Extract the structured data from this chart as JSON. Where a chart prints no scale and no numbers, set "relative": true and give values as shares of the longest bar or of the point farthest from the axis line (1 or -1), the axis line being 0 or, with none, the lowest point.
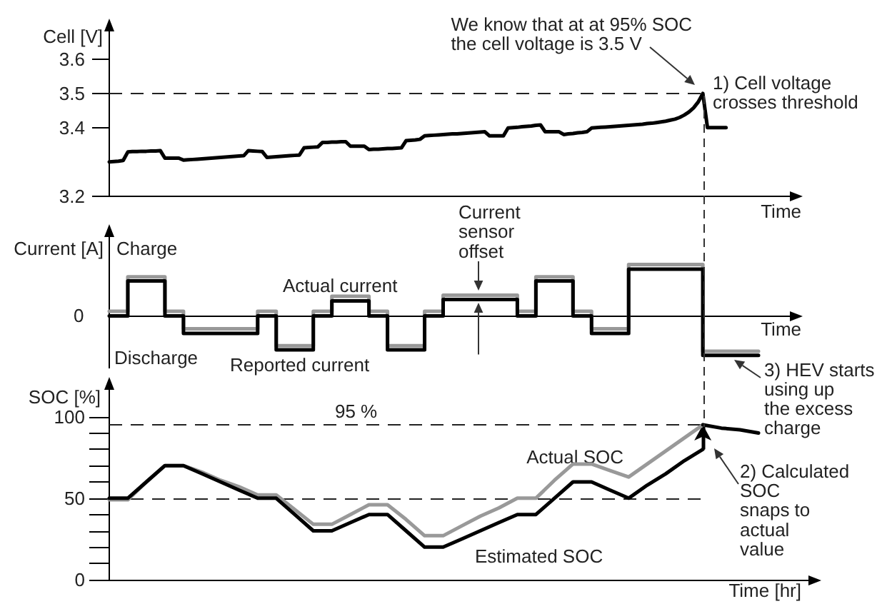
{
  "chart_data": [
    {
      "type": "line",
      "ylabel": "Cell [V]",
      "xlabel": "Time",
      "categories": [
        null,
        null,
        null,
        null,
        null,
        null,
        null,
        null,
        null,
        null,
        null,
        null,
        null,
        null,
        null,
        null,
        null,
        null,
        null,
        null,
        null,
        null,
        null,
        null,
        null,
        null,
        null,
        null,
        null,
        null,
        null,
        null,
        null,
        null,
        null,
        null,
        null,
        null,
        null,
        null,
        null,
        null,
        null,
        null,
        null,
        null,
        null,
        null,
        null,
        null,
        null,
        null,
        null,
        null,
        null,
        null,
        null,
        null,
        null,
        null,
        null,
        null,
        null,
        null,
        null,
        null,
        null,
        null,
        null,
        null,
        null,
        null,
        null,
        null,
        null,
        null,
        null,
        null,
        null,
        null,
        null,
        null,
        null,
        null,
        null,
        null,
        null,
        null,
        null,
        null,
        null,
        null,
        null,
        null,
        null,
        null,
        null,
        null,
        null,
        null,
        null,
        null,
        null,
        null,
        null,
        null,
        null,
        null,
        null,
        null,
        null,
        null,
        null,
        null,
        null,
        null,
        null,
        null,
        null,
        null,
        null,
        null,
        null,
        null,
        null,
        null,
        null,
        null,
        null,
        null,
        null,
        null,
        null,
        null,
        null,
        null,
        null,
        null,
        null,
        null,
        null,
        null,
        null,
        null,
        null,
        null,
        null,
        null,
        null
      ],
      "series": [
        {
          "color": "#000000",
          "values": [
            3.3,
            3.301,
            3.302,
            3.304,
            3.329,
            3.33,
            3.33,
            3.331,
            3.331,
            3.332,
            3.332,
            3.333,
            3.311,
            3.311,
            3.311,
            3.311,
            3.305,
            3.306,
            3.307,
            3.308,
            3.309,
            3.31,
            3.311,
            3.312,
            3.313,
            3.314,
            3.315,
            3.316,
            3.317,
            3.318,
            3.333,
            3.332,
            3.331,
            3.33,
            3.313,
            3.314,
            3.315,
            3.316,
            3.317,
            3.318,
            3.319,
            3.32,
            3.341,
            3.342,
            3.343,
            3.344,
            3.357,
            3.357,
            3.358,
            3.358,
            3.359,
            3.359,
            3.346,
            3.346,
            3.346,
            3.346,
            3.336,
            3.337,
            3.337,
            3.338,
            3.339,
            3.339,
            3.34,
            3.341,
            3.362,
            3.363,
            3.364,
            3.366,
            3.376,
            3.377,
            3.378,
            3.379,
            3.38,
            3.381,
            3.382,
            3.382,
            3.383,
            3.384,
            3.385,
            3.386,
            3.387,
            3.388,
            3.376,
            3.376,
            3.376,
            3.376,
            3.399,
            3.4,
            3.401,
            3.403,
            3.404,
            3.405,
            3.407,
            3.408,
            3.388,
            3.388,
            3.388,
            3.388,
            3.38,
            3.382,
            3.383,
            3.385,
            3.386,
            3.388,
            3.399,
            3.4,
            3.401,
            3.402,
            3.403,
            3.404,
            3.405,
            3.406,
            3.407,
            3.408,
            3.409,
            3.41,
            3.412,
            3.413,
            3.415,
            3.417,
            3.419,
            3.422,
            3.425,
            3.43,
            3.437,
            3.446,
            3.458,
            3.475,
            3.5,
            3.4,
            3.4,
            3.4,
            3.4,
            3.4,
            null,
            null,
            null,
            null,
            null,
            null,
            null,
            null,
            null,
            null,
            null,
            null,
            null,
            null,
            null
          ]
        }
      ],
      "ylim": [
        3.2,
        3.7
      ],
      "yticks": [
        3.2,
        3.4,
        3.5,
        3.6
      ],
      "ref_lines": [
        {
          "axis": "y",
          "value": 3.5,
          "line_style": "dashed"
        }
      ],
      "annotations": [
        "We know that at at 95% SOC\nthe cell voltage is 3.5 V",
        "1) Cell voltage\ncrosses threshold"
      ],
      "tick_labels": "y"
    },
    {
      "type": "step",
      "ylabel": "Current [A]",
      "xlabel": "Time",
      "relative": true,
      "categories": [
        null,
        null,
        null,
        null,
        null,
        null,
        null,
        null,
        null,
        null,
        null,
        null,
        null,
        null,
        null,
        null,
        null,
        null,
        null,
        null,
        null,
        null,
        null,
        null,
        null,
        null,
        null,
        null,
        null,
        null,
        null,
        null,
        null,
        null,
        null,
        null,
        null,
        null
      ],
      "series": [
        {
          "name": "Actual current",
          "color": "#999999",
          "values": [
            0.09,
            0.09,
            0.76,
            0.76,
            0.09,
            -0.25,
            -0.25,
            -0.25,
            -0.25,
            0.09,
            -0.58,
            -0.58,
            0.09,
            0.38,
            0.38,
            0.09,
            -0.58,
            -0.58,
            0.09,
            0.4,
            0.4,
            0.4,
            0.4,
            0.09,
            0.76,
            0.76,
            0.09,
            -0.25,
            -0.25,
            1,
            1,
            1,
            1,
            -0.69,
            -0.69,
            -0.69,
            null,
            null
          ]
        },
        {
          "name": "Reported current",
          "color": "#000000",
          "values": [
            0,
            0,
            0.68,
            0.68,
            0,
            -0.34,
            -0.34,
            -0.34,
            -0.34,
            0,
            -0.66,
            -0.66,
            0,
            0.29,
            0.29,
            0,
            -0.66,
            -0.66,
            0,
            0.32,
            0.32,
            0.32,
            0.32,
            0,
            0.68,
            0.68,
            0,
            -0.34,
            -0.34,
            0.91,
            0.91,
            0.91,
            0.91,
            -0.77,
            -0.77,
            -0.77,
            null,
            null
          ]
        }
      ],
      "annotations": [
        "Charge",
        "Discharge",
        "Current\nsensor\noffset",
        "3) HEV starts\nusing up\nthe excess\ncharge",
        "0"
      ],
      "tick_labels": "y"
    },
    {
      "type": "line",
      "ylabel": "SOC [%]",
      "xlabel": "Time [hr]",
      "categories": [
        null,
        null,
        null,
        null,
        null,
        null,
        null,
        null,
        null,
        null,
        null,
        null,
        null,
        null,
        null,
        null,
        null,
        null,
        null,
        null,
        null,
        null,
        null,
        null,
        null,
        null,
        null,
        null,
        null,
        null,
        null,
        null,
        null,
        null,
        null,
        null,
        null,
        null,
        null
      ],
      "series": [
        {
          "name": "Actual SOC",
          "color": "#999999",
          "values": [
            49,
            49,
            60,
            70,
            70,
            66,
            61,
            57,
            52,
            52,
            43,
            34,
            34,
            40,
            46,
            46,
            37,
            27,
            27,
            33,
            39,
            44,
            50,
            50,
            61,
            71,
            71,
            67,
            63,
            71,
            79,
            87,
            95,
            null,
            null,
            null,
            null,
            null,
            null
          ]
        },
        {
          "name": "Estimated SOC",
          "color": "#000000",
          "values": [
            50,
            50,
            60,
            70,
            70,
            65,
            60,
            55,
            50,
            50,
            40,
            30,
            30,
            35,
            40,
            40,
            30,
            20,
            20,
            25,
            30,
            35,
            40,
            40,
            50,
            60,
            60,
            55,
            50,
            58,
            65,
            73,
            80,
            null,
            null,
            null,
            null,
            null,
            null
          ]
        },
        {
          "color": "#000000",
          "values": [
            null,
            null,
            null,
            null,
            null,
            null,
            null,
            null,
            null,
            null,
            null,
            null,
            null,
            null,
            null,
            null,
            null,
            null,
            null,
            null,
            null,
            null,
            null,
            null,
            null,
            null,
            null,
            null,
            null,
            null,
            null,
            null,
            95,
            93,
            92,
            90,
            null,
            null,
            null
          ]
        }
      ],
      "ylim": [
        0,
        120
      ],
      "yticks": [
        0,
        {
          "value": 10,
          "label": null
        },
        {
          "value": 20,
          "label": null
        },
        {
          "value": 30,
          "label": null
        },
        {
          "value": 40,
          "label": null
        },
        50,
        {
          "value": 60,
          "label": null
        },
        {
          "value": 70,
          "label": null
        },
        {
          "value": 80,
          "label": null
        },
        {
          "value": 90,
          "label": null
        },
        100
      ],
      "ref_lines": [
        {
          "axis": "y",
          "value": 95,
          "label": "95 %",
          "line_style": "dashed"
        },
        {
          "axis": "y",
          "value": 50,
          "line_style": "dashed"
        }
      ],
      "annotations": [
        "2) Calculated\nSOC\nsnaps to\nactual\nvalue"
      ],
      "tick_labels": "y"
    }
  ]
}
